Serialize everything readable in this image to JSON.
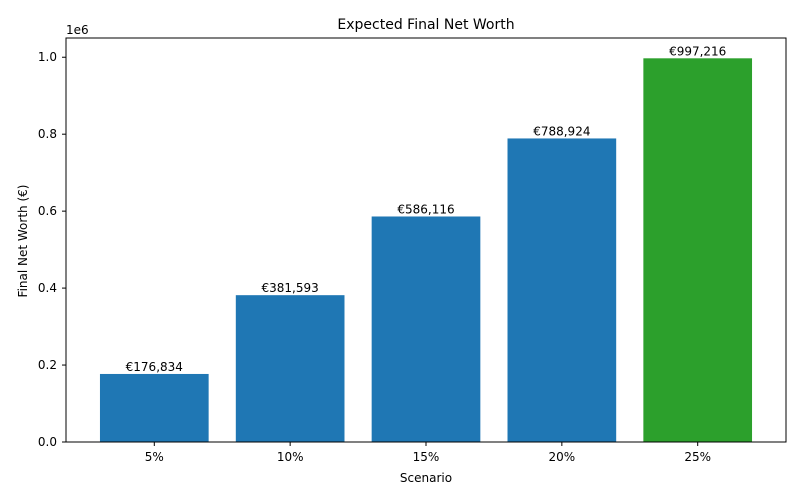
{
  "chart_data": {
    "type": "bar",
    "title": "Expected Final Net Worth",
    "xlabel": "Scenario",
    "ylabel": "Final Net Worth (€)",
    "y_offset_label": "1e6",
    "categories": [
      "5%",
      "10%",
      "15%",
      "20%",
      "25%"
    ],
    "values": [
      176834,
      381593,
      586116,
      788924,
      997216
    ],
    "data_labels": [
      "€176,834",
      "€381,593",
      "€586,116",
      "€788,924",
      "€997,216"
    ],
    "bar_colors": [
      "#1f77b4",
      "#1f77b4",
      "#1f77b4",
      "#1f77b4",
      "#2ca02c"
    ],
    "ylim": [
      0,
      1050000
    ],
    "yticks": [
      0,
      200000,
      400000,
      600000,
      800000,
      1000000
    ],
    "ytick_labels": [
      "0.0",
      "0.2",
      "0.4",
      "0.6",
      "0.8",
      "1.0"
    ],
    "grid": false,
    "legend": "none"
  }
}
